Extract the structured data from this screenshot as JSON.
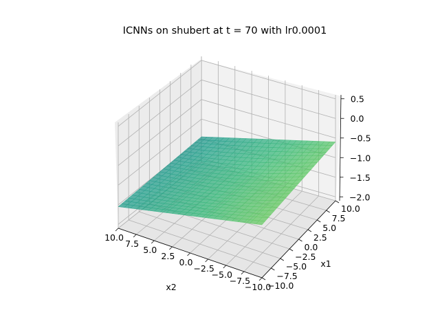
{
  "chart_data": {
    "type": "surface3d",
    "title": "ICNNs on shubert at t = 70 with lr0.0001",
    "xlabel": "x1",
    "ylabel": "x2",
    "zlabel": "",
    "colormap": "viridis",
    "xlim": [
      -10,
      10
    ],
    "ylim": [
      -10,
      10
    ],
    "zlim": [
      -2.1,
      0.6
    ],
    "x_ticks": [
      "−10.0",
      "−7.5",
      "−5.0",
      "−2.5",
      "0.0",
      "2.5",
      "5.0",
      "7.5",
      "10.0"
    ],
    "y_ticks": [
      "10.0",
      "7.5",
      "5.0",
      "2.5",
      "0.0",
      "−2.5",
      "−5.0",
      "−7.5",
      "−10.0"
    ],
    "z_ticks": [
      "−2.0",
      "−1.5",
      "−1.0",
      "−0.5",
      "0.0",
      "0.5"
    ],
    "surface": {
      "corners": [
        {
          "x1": -10,
          "x2": 10,
          "z": -1.55
        },
        {
          "x1": 10,
          "x2": 10,
          "z": -1.45
        },
        {
          "x1": 10,
          "x2": -10,
          "z": -0.6
        },
        {
          "x1": -10,
          "x2": -10,
          "z": -0.75
        }
      ],
      "z_at_center": -1.2
    }
  }
}
